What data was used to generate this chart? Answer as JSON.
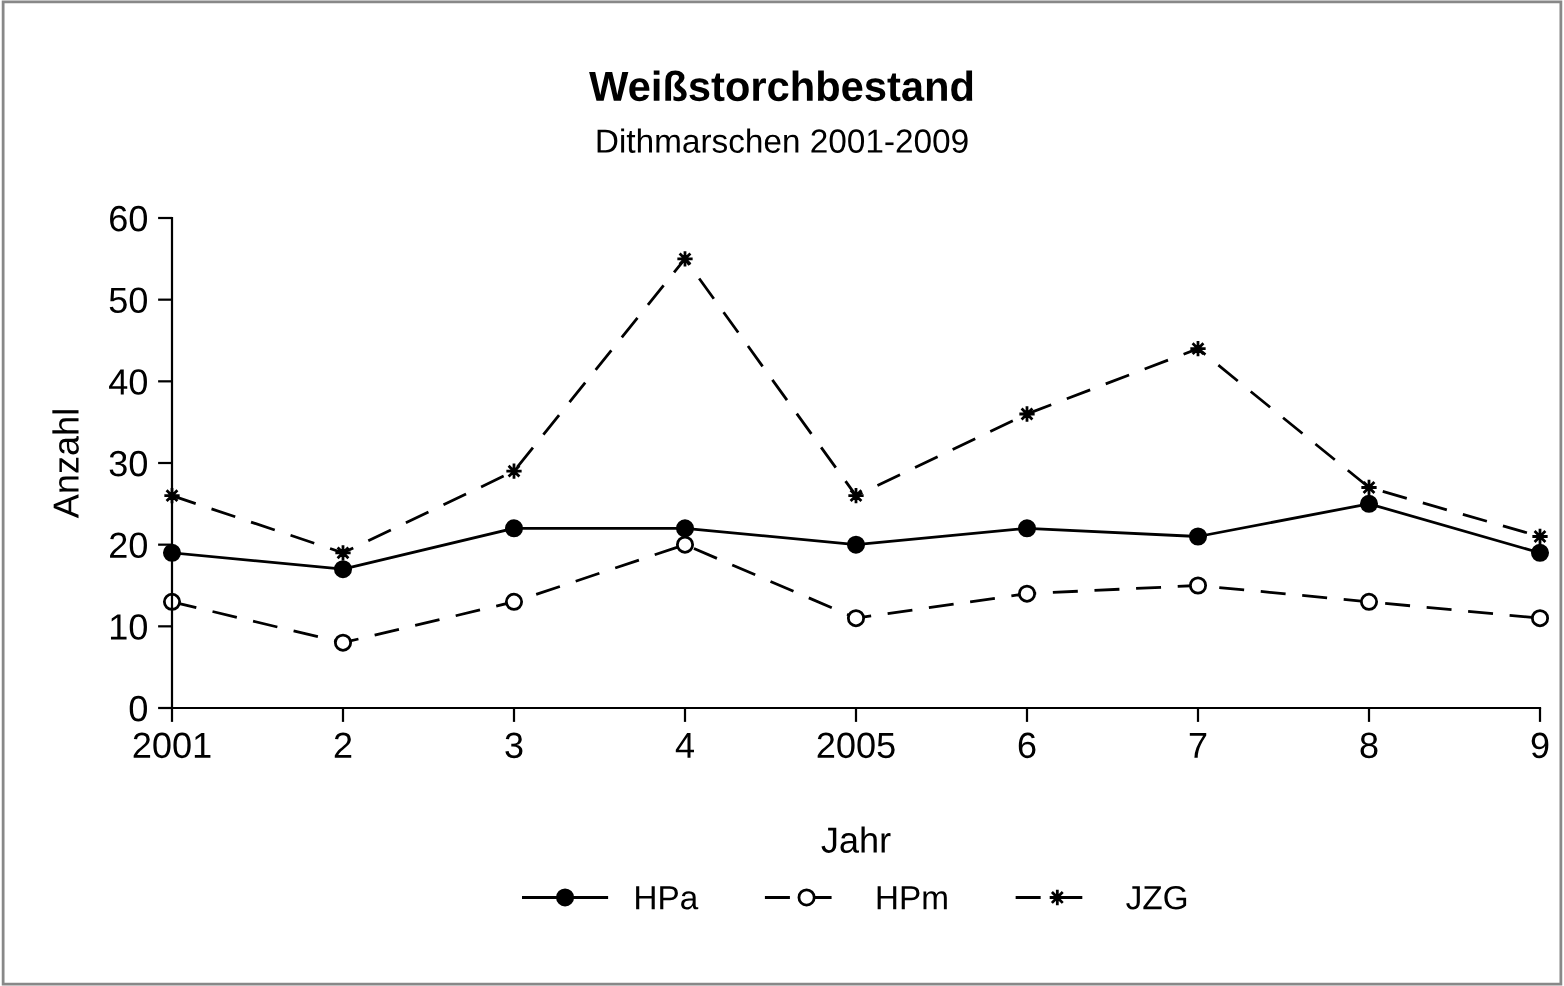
{
  "chart_data": {
    "type": "line",
    "title": "Weißstorchbestand",
    "subtitle": "Dithmarschen 2001-2009",
    "xlabel": "Jahr",
    "ylabel": "Anzahl",
    "categories": [
      "2001",
      "2",
      "3",
      "4",
      "2005",
      "6",
      "7",
      "8",
      "9"
    ],
    "ylim": [
      0,
      60
    ],
    "yticks": [
      0,
      10,
      20,
      30,
      40,
      50,
      60
    ],
    "series": [
      {
        "name": "HPa",
        "color": "#000000",
        "marker": "circle",
        "line_style": "solid",
        "values": [
          19,
          17,
          22,
          22,
          20,
          22,
          21,
          25,
          19
        ]
      },
      {
        "name": "HPm",
        "color": "#000000",
        "marker": "circle",
        "line_style": "dashed",
        "values": [
          13,
          8,
          13,
          20,
          11,
          14,
          15,
          13,
          11
        ]
      },
      {
        "name": "JZG",
        "color": "#000000",
        "marker": "star",
        "line_style": "dashed",
        "values": [
          26,
          19,
          29,
          55,
          26,
          36,
          44,
          27,
          21
        ]
      }
    ],
    "grid": false,
    "legend": "bottom"
  }
}
